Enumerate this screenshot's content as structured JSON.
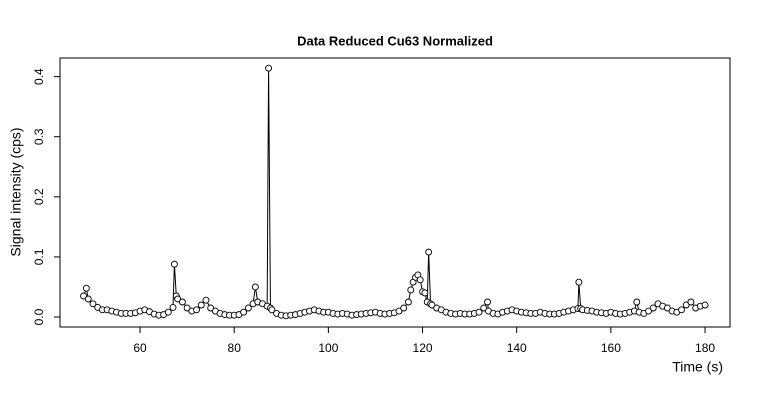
{
  "chart_data": {
    "type": "line-points",
    "title": "Data Reduced Cu63 Normalized",
    "x_label": "Time (s)",
    "y_label": "Signal intensity (cps)",
    "color": "#000000",
    "xlim": [
      43,
      185.3
    ],
    "ylim": [
      -0.0166,
      0.431
    ],
    "xticks": [
      60,
      80,
      100,
      120,
      140,
      160,
      180
    ],
    "yticks": [
      {
        "value": 0,
        "label": "0.0"
      },
      0.1,
      0.2,
      0.3,
      0.4
    ],
    "grid": false,
    "x": [
      48,
      48.6,
      49,
      50,
      51,
      52,
      53,
      54,
      55,
      56,
      57,
      58,
      59,
      60,
      61,
      62,
      63,
      64,
      65,
      66,
      67,
      67.3,
      67.7,
      68,
      69,
      70,
      71,
      72,
      73,
      74,
      75,
      76,
      77,
      78,
      79,
      80,
      81,
      82,
      83,
      84,
      84.5,
      85,
      86,
      87,
      87.3,
      87.7,
      88,
      89,
      90,
      91,
      92,
      93,
      94,
      95,
      96,
      97,
      98,
      99,
      100,
      101,
      102,
      103,
      104,
      105,
      106,
      107,
      108,
      109,
      110,
      111,
      112,
      113,
      114,
      115,
      116,
      117,
      117.5,
      118,
      118.5,
      119,
      119.5,
      120,
      120.5,
      121,
      121.3,
      121.7,
      122,
      123,
      124,
      125,
      126,
      127,
      128,
      129,
      130,
      131,
      132,
      133,
      133.8,
      134,
      135,
      136,
      137,
      138,
      139,
      140,
      141,
      142,
      143,
      144,
      145,
      146,
      147,
      148,
      149,
      150,
      151,
      152,
      153,
      153.2,
      153.6,
      154,
      155,
      156,
      157,
      158,
      159,
      160,
      161,
      162,
      163,
      164,
      165,
      165.5,
      166,
      167,
      168,
      169,
      170,
      171,
      172,
      173,
      174,
      175,
      176,
      177,
      178,
      179,
      180
    ],
    "values": [
      0.035,
      0.048,
      0.03,
      0.022,
      0.016,
      0.012,
      0.012,
      0.01,
      0.008,
      0.006,
      0.006,
      0.006,
      0.007,
      0.01,
      0.012,
      0.009,
      0.005,
      0.003,
      0.004,
      0.008,
      0.016,
      0.088,
      0.035,
      0.03,
      0.025,
      0.015,
      0.01,
      0.012,
      0.02,
      0.028,
      0.015,
      0.01,
      0.006,
      0.004,
      0.003,
      0.003,
      0.004,
      0.008,
      0.015,
      0.022,
      0.05,
      0.025,
      0.022,
      0.018,
      0.414,
      0.015,
      0.012,
      0.006,
      0.003,
      0.002,
      0.003,
      0.004,
      0.006,
      0.008,
      0.01,
      0.012,
      0.01,
      0.008,
      0.008,
      0.006,
      0.005,
      0.006,
      0.005,
      0.003,
      0.004,
      0.005,
      0.006,
      0.007,
      0.008,
      0.006,
      0.005,
      0.006,
      0.007,
      0.01,
      0.015,
      0.025,
      0.045,
      0.058,
      0.066,
      0.07,
      0.062,
      0.042,
      0.04,
      0.025,
      0.108,
      0.022,
      0.02,
      0.015,
      0.012,
      0.008,
      0.006,
      0.005,
      0.006,
      0.005,
      0.005,
      0.006,
      0.008,
      0.015,
      0.025,
      0.01,
      0.006,
      0.005,
      0.008,
      0.01,
      0.012,
      0.01,
      0.008,
      0.007,
      0.006,
      0.006,
      0.008,
      0.006,
      0.005,
      0.005,
      0.006,
      0.008,
      0.01,
      0.012,
      0.014,
      0.058,
      0.014,
      0.012,
      0.011,
      0.01,
      0.008,
      0.007,
      0.006,
      0.008,
      0.006,
      0.005,
      0.006,
      0.008,
      0.01,
      0.025,
      0.008,
      0.006,
      0.01,
      0.015,
      0.022,
      0.018,
      0.015,
      0.01,
      0.008,
      0.012,
      0.02,
      0.025,
      0.015,
      0.018,
      0.02
    ]
  }
}
